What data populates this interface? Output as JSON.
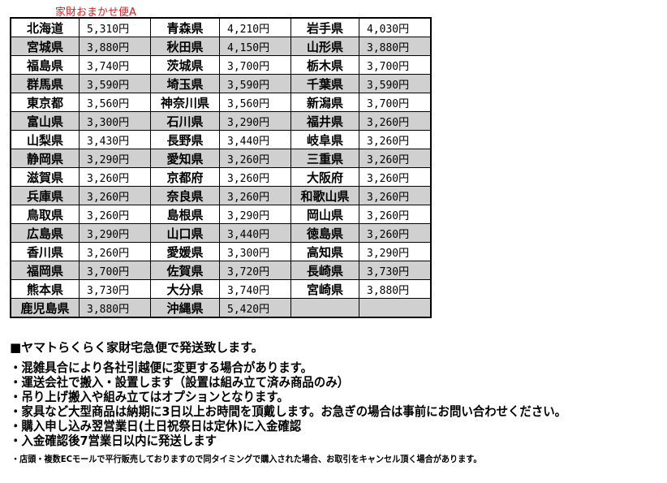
{
  "title": "家財おまかせ便A",
  "rows": [
    [
      [
        "北海道",
        "5,310円"
      ],
      [
        "青森県",
        "4,210円"
      ],
      [
        "岩手県",
        "4,030円"
      ]
    ],
    [
      [
        "宮城県",
        "3,880円"
      ],
      [
        "秋田県",
        "4,150円"
      ],
      [
        "山形県",
        "3,880円"
      ]
    ],
    [
      [
        "福島県",
        "3,740円"
      ],
      [
        "茨城県",
        "3,700円"
      ],
      [
        "栃木県",
        "3,700円"
      ]
    ],
    [
      [
        "群馬県",
        "3,590円"
      ],
      [
        "埼玉県",
        "3,590円"
      ],
      [
        "千葉県",
        "3,590円"
      ]
    ],
    [
      [
        "東京都",
        "3,560円"
      ],
      [
        "神奈川県",
        "3,560円"
      ],
      [
        "新潟県",
        "3,700円"
      ]
    ],
    [
      [
        "富山県",
        "3,300円"
      ],
      [
        "石川県",
        "3,290円"
      ],
      [
        "福井県",
        "3,260円"
      ]
    ],
    [
      [
        "山梨県",
        "3,430円"
      ],
      [
        "長野県",
        "3,440円"
      ],
      [
        "岐阜県",
        "3,260円"
      ]
    ],
    [
      [
        "静岡県",
        "3,290円"
      ],
      [
        "愛知県",
        "3,260円"
      ],
      [
        "三重県",
        "3,260円"
      ]
    ],
    [
      [
        "滋賀県",
        "3,260円"
      ],
      [
        "京都府",
        "3,260円"
      ],
      [
        "大阪府",
        "3,260円"
      ]
    ],
    [
      [
        "兵庫県",
        "3,260円"
      ],
      [
        "奈良県",
        "3,260円"
      ],
      [
        "和歌山県",
        "3,260円"
      ]
    ],
    [
      [
        "鳥取県",
        "3,260円"
      ],
      [
        "島根県",
        "3,290円"
      ],
      [
        "岡山県",
        "3,260円"
      ]
    ],
    [
      [
        "広島県",
        "3,290円"
      ],
      [
        "山口県",
        "3,440円"
      ],
      [
        "徳島県",
        "3,260円"
      ]
    ],
    [
      [
        "香川県",
        "3,260円"
      ],
      [
        "愛媛県",
        "3,300円"
      ],
      [
        "高知県",
        "3,290円"
      ]
    ],
    [
      [
        "福岡県",
        "3,700円"
      ],
      [
        "佐賀県",
        "3,720円"
      ],
      [
        "長崎県",
        "3,730円"
      ]
    ],
    [
      [
        "熊本県",
        "3,730円"
      ],
      [
        "大分県",
        "3,740円"
      ],
      [
        "宮崎県",
        "3,880円"
      ]
    ],
    [
      [
        "鹿児島県",
        "3,880円"
      ],
      [
        "沖縄県",
        "5,420円"
      ],
      [
        "",
        ""
      ]
    ]
  ],
  "notes": {
    "heading": "■ヤマトらくらく家財宅急便で発送致します。",
    "bullets": [
      "・混雑具合により各社引越便に変更する場合があります。",
      "・運送会社で搬入・設置します（設置は組み立て済み商品のみ）",
      "・吊り上げ搬入や組み立てはオプションとなります。",
      "・家具など大型商品は納期に3日以上お時間を頂戴します。お急ぎの場合は事前にお問い合わせください。",
      "・購入申し込み翌営業日(土日祝祭日は定休)に入金確認",
      "・入金確認後7営業日以内に発送します"
    ],
    "footnote": "・店頭・複数ECモールで平行販売しておりますので同タイミングで購入された場合、お取引をキャンセル頂く場合があります。"
  }
}
